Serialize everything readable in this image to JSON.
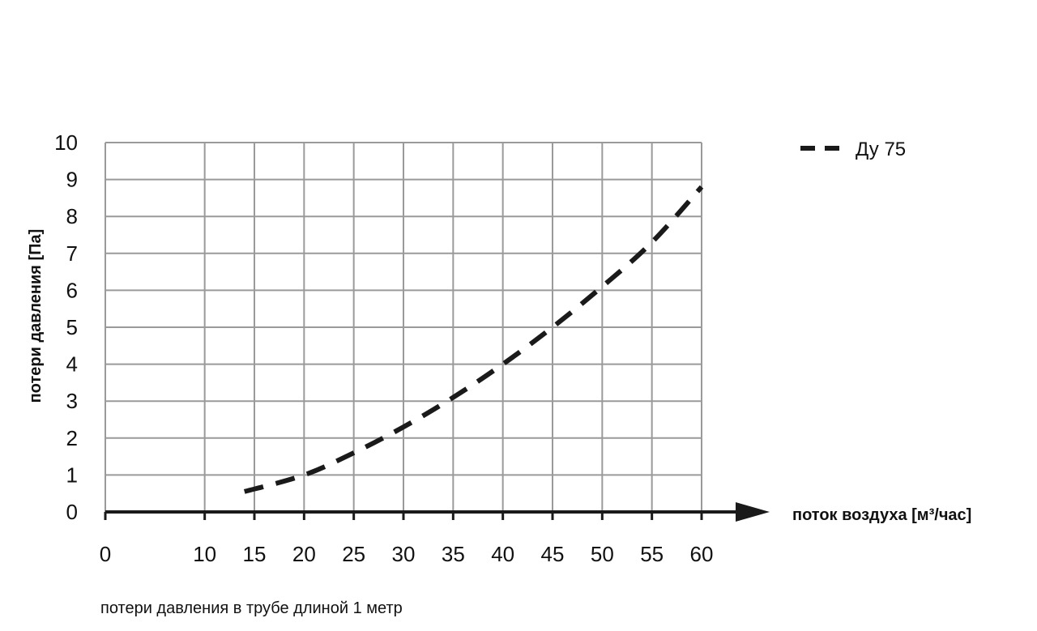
{
  "chart_data": {
    "type": "line",
    "xlabel": "поток воздуха [м³/час]",
    "ylabel": "потери давления [Па]",
    "xlim": [
      0,
      60
    ],
    "ylim": [
      0,
      10
    ],
    "x_ticks": [
      0,
      10,
      15,
      20,
      25,
      30,
      35,
      40,
      45,
      50,
      55,
      60
    ],
    "y_ticks": [
      0,
      1,
      2,
      3,
      4,
      5,
      6,
      7,
      8,
      9,
      10
    ],
    "grid": true,
    "legend_position": "top-right",
    "series": [
      {
        "name": "Ду 75",
        "style": "dashed",
        "color": "#1a1a1a",
        "x": [
          14,
          20,
          25,
          30,
          35,
          40,
          45,
          50,
          55,
          60
        ],
        "y": [
          0.55,
          1.0,
          1.6,
          2.3,
          3.1,
          4.0,
          5.0,
          6.1,
          7.3,
          8.8
        ]
      }
    ]
  },
  "footnote": "потери давления в трубе длиной 1 метр",
  "colors": {
    "grid": "#9a9a9a",
    "axis": "#1a1a1a",
    "line": "#1a1a1a"
  }
}
